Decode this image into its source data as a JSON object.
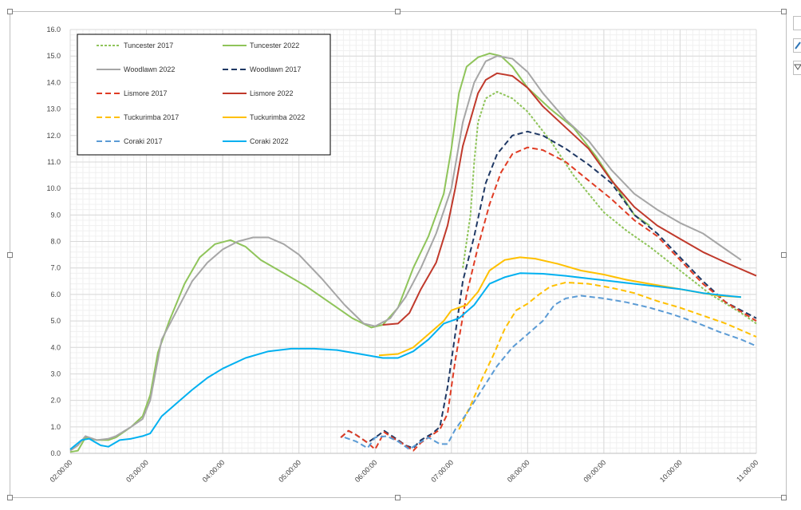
{
  "chart_data": {
    "type": "line",
    "title": "",
    "xlabel": "",
    "ylabel": "",
    "x_ticks": [
      "02:00:00",
      "03:00:00",
      "04:00:00",
      "05:00:00",
      "06:00:00",
      "07:00:00",
      "08:00:00",
      "09:00:00",
      "10:00:00",
      "11:00:00"
    ],
    "x_range": [
      2.0,
      11.0
    ],
    "y_ticks": [
      "0.0",
      "1.0",
      "2.0",
      "3.0",
      "4.0",
      "5.0",
      "6.0",
      "7.0",
      "8.0",
      "9.0",
      "10.0",
      "11.0",
      "12.0",
      "13.0",
      "14.0",
      "15.0",
      "16.0"
    ],
    "ylim": [
      0,
      16
    ],
    "grid": true,
    "legend_position": "top-left",
    "series": [
      {
        "name": "Tuncester 2017",
        "color": "#8fc45a",
        "dash": "dotted-dash",
        "points": [
          [
            7.15,
            7.0
          ],
          [
            7.25,
            9.0
          ],
          [
            7.3,
            11.0
          ],
          [
            7.35,
            12.5
          ],
          [
            7.45,
            13.4
          ],
          [
            7.6,
            13.65
          ],
          [
            7.8,
            13.4
          ],
          [
            8.0,
            12.9
          ],
          [
            8.3,
            11.8
          ],
          [
            8.6,
            10.5
          ],
          [
            9.0,
            9.1
          ],
          [
            9.3,
            8.4
          ],
          [
            9.6,
            7.8
          ],
          [
            10.0,
            6.9
          ],
          [
            10.4,
            6.0
          ],
          [
            10.8,
            5.3
          ],
          [
            11.0,
            4.9
          ]
        ]
      },
      {
        "name": "Tuncester 2022",
        "color": "#8fc45a",
        "dash": "solid",
        "points": [
          [
            2.0,
            0.05
          ],
          [
            2.1,
            0.1
          ],
          [
            2.2,
            0.6
          ],
          [
            2.35,
            0.5
          ],
          [
            2.5,
            0.5
          ],
          [
            2.6,
            0.6
          ],
          [
            2.8,
            1.0
          ],
          [
            2.95,
            1.4
          ],
          [
            3.05,
            2.2
          ],
          [
            3.15,
            3.8
          ],
          [
            3.3,
            5.0
          ],
          [
            3.5,
            6.4
          ],
          [
            3.7,
            7.4
          ],
          [
            3.9,
            7.9
          ],
          [
            4.1,
            8.05
          ],
          [
            4.3,
            7.8
          ],
          [
            4.5,
            7.3
          ],
          [
            4.8,
            6.8
          ],
          [
            5.1,
            6.3
          ],
          [
            5.4,
            5.7
          ],
          [
            5.7,
            5.1
          ],
          [
            5.95,
            4.75
          ],
          [
            6.1,
            4.85
          ],
          [
            6.3,
            5.5
          ],
          [
            6.5,
            7.0
          ],
          [
            6.7,
            8.2
          ],
          [
            6.9,
            9.8
          ],
          [
            7.0,
            11.5
          ],
          [
            7.1,
            13.6
          ],
          [
            7.2,
            14.6
          ],
          [
            7.35,
            14.95
          ],
          [
            7.5,
            15.1
          ],
          [
            7.65,
            15.0
          ],
          [
            7.8,
            14.6
          ],
          [
            8.0,
            13.8
          ],
          [
            8.3,
            13.0
          ],
          [
            8.6,
            12.3
          ],
          [
            8.9,
            11.2
          ],
          [
            9.2,
            9.9
          ],
          [
            9.4,
            9.0
          ],
          [
            9.6,
            8.6
          ]
        ]
      },
      {
        "name": "Woodlawn 2022",
        "color": "#a6a6a6",
        "dash": "solid",
        "points": [
          [
            2.0,
            0.1
          ],
          [
            2.1,
            0.3
          ],
          [
            2.2,
            0.65
          ],
          [
            2.35,
            0.5
          ],
          [
            2.5,
            0.55
          ],
          [
            2.6,
            0.65
          ],
          [
            2.8,
            1.0
          ],
          [
            2.95,
            1.3
          ],
          [
            3.05,
            2.0
          ],
          [
            3.2,
            4.3
          ],
          [
            3.4,
            5.4
          ],
          [
            3.6,
            6.5
          ],
          [
            3.8,
            7.2
          ],
          [
            4.0,
            7.7
          ],
          [
            4.2,
            8.0
          ],
          [
            4.4,
            8.15
          ],
          [
            4.6,
            8.15
          ],
          [
            4.8,
            7.9
          ],
          [
            5.0,
            7.5
          ],
          [
            5.3,
            6.6
          ],
          [
            5.6,
            5.6
          ],
          [
            5.85,
            4.9
          ],
          [
            6.0,
            4.8
          ],
          [
            6.2,
            5.1
          ],
          [
            6.4,
            5.9
          ],
          [
            6.6,
            7.0
          ],
          [
            6.8,
            8.3
          ],
          [
            7.0,
            10.0
          ],
          [
            7.15,
            12.5
          ],
          [
            7.3,
            14.0
          ],
          [
            7.45,
            14.8
          ],
          [
            7.6,
            15.0
          ],
          [
            7.8,
            14.9
          ],
          [
            8.0,
            14.4
          ],
          [
            8.2,
            13.6
          ],
          [
            8.5,
            12.6
          ],
          [
            8.8,
            11.8
          ],
          [
            9.1,
            10.7
          ],
          [
            9.4,
            9.8
          ],
          [
            9.7,
            9.2
          ],
          [
            10.0,
            8.7
          ],
          [
            10.3,
            8.3
          ],
          [
            10.6,
            7.7
          ],
          [
            10.8,
            7.3
          ]
        ]
      },
      {
        "name": "Woodlawn 2017",
        "color": "#1f3864",
        "dash": "dash",
        "points": [
          [
            5.55,
            0.6
          ],
          [
            5.65,
            0.85
          ],
          [
            5.75,
            0.7
          ],
          [
            5.9,
            0.4
          ],
          [
            6.05,
            0.7
          ],
          [
            6.12,
            0.85
          ],
          [
            6.25,
            0.6
          ],
          [
            6.4,
            0.3
          ],
          [
            6.5,
            0.2
          ],
          [
            6.6,
            0.5
          ],
          [
            6.75,
            0.75
          ],
          [
            6.85,
            1.0
          ],
          [
            6.95,
            2.5
          ],
          [
            7.05,
            4.5
          ],
          [
            7.15,
            6.5
          ],
          [
            7.3,
            8.2
          ],
          [
            7.45,
            10.2
          ],
          [
            7.6,
            11.3
          ],
          [
            7.8,
            12.0
          ],
          [
            8.0,
            12.15
          ],
          [
            8.2,
            12.0
          ],
          [
            8.5,
            11.5
          ],
          [
            8.8,
            10.9
          ],
          [
            9.1,
            10.2
          ],
          [
            9.4,
            9.0
          ],
          [
            9.7,
            8.3
          ],
          [
            10.0,
            7.4
          ],
          [
            10.3,
            6.5
          ],
          [
            10.6,
            5.7
          ],
          [
            11.0,
            5.1
          ]
        ]
      },
      {
        "name": "Lismore 2017",
        "color": "#e03c24",
        "dash": "dash",
        "points": [
          [
            5.55,
            0.6
          ],
          [
            5.65,
            0.85
          ],
          [
            5.75,
            0.7
          ],
          [
            5.9,
            0.4
          ],
          [
            6.0,
            0.15
          ],
          [
            6.12,
            0.8
          ],
          [
            6.25,
            0.55
          ],
          [
            6.4,
            0.3
          ],
          [
            6.5,
            0.1
          ],
          [
            6.6,
            0.4
          ],
          [
            6.75,
            0.7
          ],
          [
            6.85,
            0.9
          ],
          [
            6.95,
            1.5
          ],
          [
            7.05,
            3.5
          ],
          [
            7.2,
            6.0
          ],
          [
            7.35,
            7.8
          ],
          [
            7.5,
            9.4
          ],
          [
            7.65,
            10.6
          ],
          [
            7.8,
            11.3
          ],
          [
            8.0,
            11.55
          ],
          [
            8.2,
            11.45
          ],
          [
            8.5,
            11.0
          ],
          [
            8.8,
            10.3
          ],
          [
            9.1,
            9.6
          ],
          [
            9.4,
            8.8
          ],
          [
            9.7,
            8.2
          ],
          [
            10.0,
            7.3
          ],
          [
            10.3,
            6.4
          ],
          [
            10.6,
            5.7
          ],
          [
            11.0,
            5.0
          ]
        ]
      },
      {
        "name": "Lismore 2022",
        "color": "#c0392b",
        "dash": "solid",
        "points": [
          [
            6.1,
            4.85
          ],
          [
            6.3,
            4.9
          ],
          [
            6.45,
            5.3
          ],
          [
            6.6,
            6.2
          ],
          [
            6.8,
            7.2
          ],
          [
            6.95,
            8.6
          ],
          [
            7.05,
            10.0
          ],
          [
            7.15,
            11.6
          ],
          [
            7.25,
            12.6
          ],
          [
            7.35,
            13.6
          ],
          [
            7.45,
            14.1
          ],
          [
            7.6,
            14.35
          ],
          [
            7.8,
            14.25
          ],
          [
            8.0,
            13.8
          ],
          [
            8.2,
            13.1
          ],
          [
            8.5,
            12.3
          ],
          [
            8.8,
            11.5
          ],
          [
            9.1,
            10.3
          ],
          [
            9.4,
            9.3
          ],
          [
            9.7,
            8.6
          ],
          [
            10.0,
            8.1
          ],
          [
            10.3,
            7.6
          ],
          [
            10.6,
            7.2
          ],
          [
            11.0,
            6.7
          ]
        ]
      },
      {
        "name": "Tuckurimba 2017",
        "color": "#ffc000",
        "dash": "dash",
        "points": [
          [
            7.1,
            0.9
          ],
          [
            7.25,
            1.8
          ],
          [
            7.4,
            2.8
          ],
          [
            7.55,
            3.7
          ],
          [
            7.7,
            4.7
          ],
          [
            7.85,
            5.4
          ],
          [
            8.0,
            5.65
          ],
          [
            8.15,
            6.0
          ],
          [
            8.3,
            6.3
          ],
          [
            8.5,
            6.45
          ],
          [
            8.8,
            6.4
          ],
          [
            9.1,
            6.25
          ],
          [
            9.4,
            6.05
          ],
          [
            9.7,
            5.75
          ],
          [
            10.0,
            5.5
          ],
          [
            10.3,
            5.2
          ],
          [
            10.6,
            4.9
          ],
          [
            11.0,
            4.4
          ]
        ]
      },
      {
        "name": "Tuckurimba 2022",
        "color": "#ffc000",
        "dash": "solid",
        "points": [
          [
            6.05,
            3.7
          ],
          [
            6.3,
            3.75
          ],
          [
            6.5,
            4.0
          ],
          [
            6.7,
            4.5
          ],
          [
            6.9,
            5.0
          ],
          [
            7.0,
            5.4
          ],
          [
            7.2,
            5.6
          ],
          [
            7.35,
            6.1
          ],
          [
            7.5,
            6.9
          ],
          [
            7.7,
            7.3
          ],
          [
            7.9,
            7.4
          ],
          [
            8.1,
            7.35
          ],
          [
            8.4,
            7.15
          ],
          [
            8.7,
            6.9
          ],
          [
            9.0,
            6.75
          ],
          [
            9.3,
            6.55
          ],
          [
            9.6,
            6.4
          ],
          [
            9.9,
            6.25
          ],
          [
            10.2,
            6.1
          ],
          [
            10.5,
            5.95
          ],
          [
            10.8,
            5.9
          ]
        ]
      },
      {
        "name": "Coraki 2017",
        "color": "#5b9bd5",
        "dash": "dash",
        "points": [
          [
            5.6,
            0.6
          ],
          [
            5.75,
            0.45
          ],
          [
            5.9,
            0.2
          ],
          [
            6.0,
            0.6
          ],
          [
            6.15,
            0.65
          ],
          [
            6.3,
            0.45
          ],
          [
            6.45,
            0.15
          ],
          [
            6.55,
            0.35
          ],
          [
            6.7,
            0.6
          ],
          [
            6.85,
            0.35
          ],
          [
            6.95,
            0.35
          ],
          [
            7.05,
            0.9
          ],
          [
            7.2,
            1.5
          ],
          [
            7.4,
            2.4
          ],
          [
            7.6,
            3.3
          ],
          [
            7.8,
            4.0
          ],
          [
            8.0,
            4.5
          ],
          [
            8.2,
            5.0
          ],
          [
            8.35,
            5.6
          ],
          [
            8.5,
            5.85
          ],
          [
            8.7,
            5.95
          ],
          [
            9.0,
            5.85
          ],
          [
            9.3,
            5.7
          ],
          [
            9.6,
            5.5
          ],
          [
            9.9,
            5.25
          ],
          [
            10.2,
            4.95
          ],
          [
            10.5,
            4.6
          ],
          [
            10.8,
            4.3
          ],
          [
            11.0,
            4.05
          ]
        ]
      },
      {
        "name": "Coraki 2022",
        "color": "#00b0f0",
        "dash": "solid",
        "points": [
          [
            2.0,
            0.15
          ],
          [
            2.15,
            0.5
          ],
          [
            2.25,
            0.55
          ],
          [
            2.4,
            0.3
          ],
          [
            2.5,
            0.25
          ],
          [
            2.65,
            0.5
          ],
          [
            2.8,
            0.55
          ],
          [
            2.95,
            0.65
          ],
          [
            3.05,
            0.75
          ],
          [
            3.2,
            1.4
          ],
          [
            3.4,
            1.9
          ],
          [
            3.6,
            2.4
          ],
          [
            3.8,
            2.85
          ],
          [
            4.0,
            3.2
          ],
          [
            4.3,
            3.6
          ],
          [
            4.6,
            3.85
          ],
          [
            4.9,
            3.95
          ],
          [
            5.2,
            3.95
          ],
          [
            5.5,
            3.9
          ],
          [
            5.8,
            3.75
          ],
          [
            6.1,
            3.6
          ],
          [
            6.3,
            3.6
          ],
          [
            6.5,
            3.85
          ],
          [
            6.7,
            4.3
          ],
          [
            6.9,
            4.9
          ],
          [
            7.1,
            5.1
          ],
          [
            7.3,
            5.6
          ],
          [
            7.5,
            6.4
          ],
          [
            7.7,
            6.65
          ],
          [
            7.9,
            6.8
          ],
          [
            8.2,
            6.78
          ],
          [
            8.5,
            6.7
          ],
          [
            8.8,
            6.6
          ],
          [
            9.1,
            6.5
          ],
          [
            9.4,
            6.4
          ],
          [
            9.7,
            6.3
          ],
          [
            10.0,
            6.2
          ],
          [
            10.3,
            6.05
          ],
          [
            10.6,
            5.95
          ],
          [
            10.8,
            5.9
          ]
        ]
      }
    ]
  }
}
